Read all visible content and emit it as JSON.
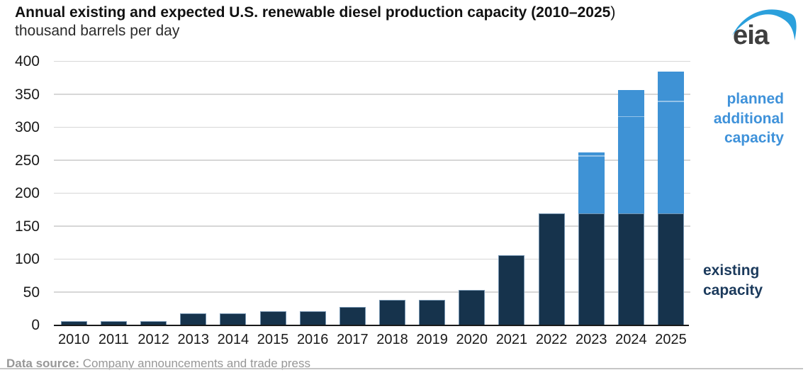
{
  "header": {
    "title_bold": "Annual existing and expected U.S. renewable diesel production capacity (2010–2025",
    "title_suffix": ")",
    "subtitle": "thousand barrels per day"
  },
  "logo": {
    "text": "eia",
    "swoosh_color": "#2ba0dc",
    "text_color": "#3f3f3f"
  },
  "chart_data": {
    "type": "bar",
    "stacked": true,
    "title": "Annual existing and expected U.S. renewable diesel production capacity (2010–2025)",
    "ylabel": "thousand barrels per day",
    "xlabel": "",
    "categories": [
      "2010",
      "2011",
      "2012",
      "2013",
      "2014",
      "2015",
      "2016",
      "2017",
      "2018",
      "2019",
      "2020",
      "2021",
      "2022",
      "2023",
      "2024",
      "2025"
    ],
    "series": [
      {
        "name": "existing capacity",
        "color": "#16334c",
        "values": [
          6,
          6,
          6,
          18,
          18,
          21,
          21,
          28,
          39,
          39,
          54,
          107,
          170,
          170,
          170,
          170
        ]
      },
      {
        "name": "planned additional capacity",
        "color": "#3e92d5",
        "values": [
          0,
          0,
          0,
          0,
          0,
          0,
          0,
          0,
          0,
          0,
          0,
          0,
          0,
          92,
          187,
          215
        ]
      }
    ],
    "stack_totals": [
      6,
      6,
      6,
      18,
      18,
      21,
      21,
      28,
      39,
      39,
      54,
      107,
      170,
      262,
      357,
      385
    ],
    "planned_segment_dividers": {
      "2023": [
        256
      ],
      "2024": [
        316
      ],
      "2025": [
        339
      ]
    },
    "ylim": [
      0,
      400
    ],
    "yticks": [
      0,
      50,
      100,
      150,
      200,
      250,
      300,
      350,
      400
    ],
    "grid": true,
    "legend_position": "right"
  },
  "legend": {
    "planned_label": "planned\nadditional\ncapacity",
    "planned_color": "#3f92da",
    "existing_label": "existing\ncapacity",
    "existing_color": "#1b3a5c"
  },
  "footer": {
    "source_label": "Data source:",
    "source_text": " Company announcements and trade press"
  }
}
